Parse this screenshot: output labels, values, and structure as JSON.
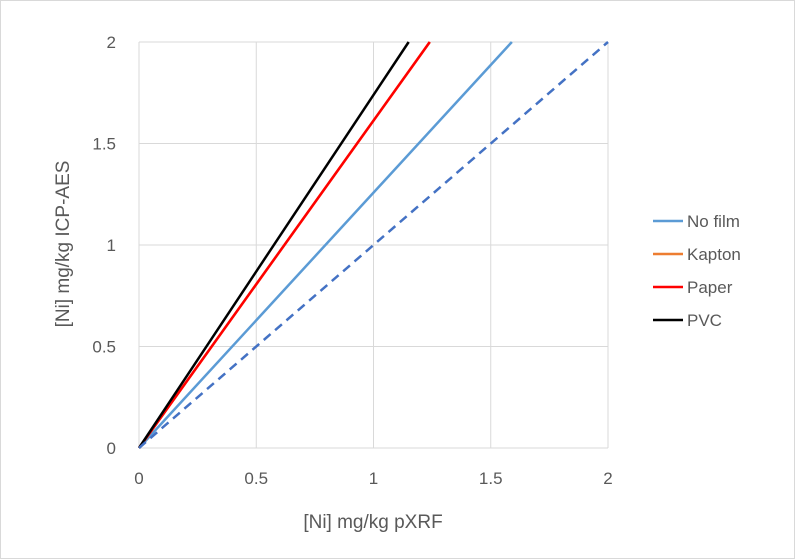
{
  "chart_data": {
    "type": "line",
    "xlabel": "[Ni] mg/kg pXRF",
    "ylabel": "[Ni] mg/kg ICP-AES",
    "xlim": [
      0,
      2
    ],
    "ylim": [
      0,
      2
    ],
    "x_ticks": [
      "0",
      "0.5",
      "1",
      "1.5",
      "2"
    ],
    "y_ticks": [
      "0",
      "0.5",
      "1",
      "1.5",
      "2"
    ],
    "grid": true,
    "legend_position": "right",
    "series": [
      {
        "name": "No film",
        "color": "#5b9bd5",
        "dash": "solid",
        "x": [
          0,
          1.59
        ],
        "y": [
          0,
          2
        ]
      },
      {
        "name": "Kapton",
        "color": "#ed7d31",
        "dash": "solid",
        "x": [
          0,
          1.24
        ],
        "y": [
          0,
          2
        ]
      },
      {
        "name": "Paper",
        "color": "#ff0000",
        "dash": "solid",
        "x": [
          0,
          1.24
        ],
        "y": [
          0,
          2
        ]
      },
      {
        "name": "PVC",
        "color": "#000000",
        "dash": "solid",
        "x": [
          0,
          1.15
        ],
        "y": [
          0,
          2
        ]
      },
      {
        "color": "#4472c4",
        "dash": "dashed",
        "x": [
          0,
          2
        ],
        "y": [
          0,
          2
        ]
      }
    ]
  }
}
